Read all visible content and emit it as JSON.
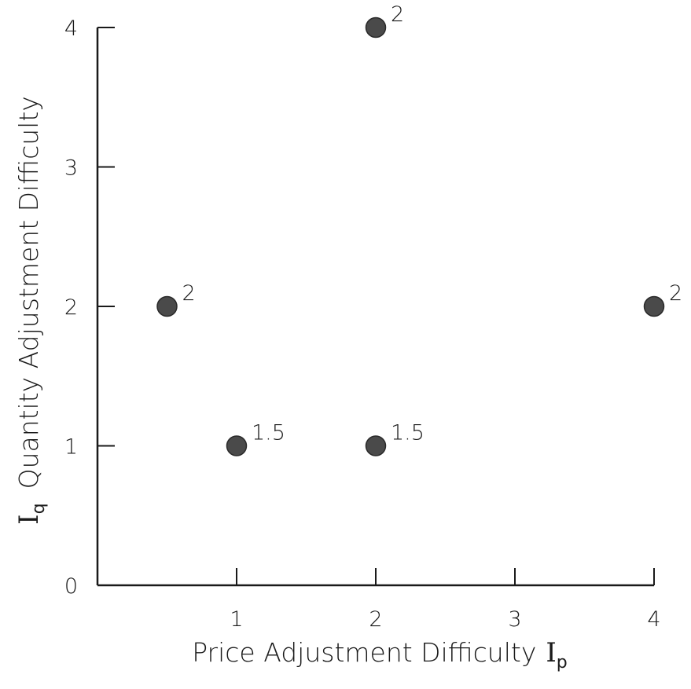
{
  "chart_data": {
    "type": "scatter",
    "xlabel": "Price Adjustment Difficulty",
    "x_symbol": "I",
    "x_symbol_sub": "p",
    "ylabel": "Quantity Adjustment Difficulty",
    "y_symbol": "I",
    "y_symbol_sub": "q",
    "xlim": [
      0,
      4
    ],
    "ylim": [
      0,
      4
    ],
    "x_ticks": [
      "1",
      "2",
      "3",
      "4"
    ],
    "y_ticks": [
      "0",
      "1",
      "2",
      "3",
      "4"
    ],
    "grid": false,
    "points": [
      {
        "x": 0.5,
        "y": 2,
        "label": "2"
      },
      {
        "x": 1,
        "y": 1,
        "label": "1.5"
      },
      {
        "x": 2,
        "y": 1,
        "label": "1.5"
      },
      {
        "x": 2,
        "y": 4,
        "label": "2"
      },
      {
        "x": 4,
        "y": 2,
        "label": "2"
      }
    ],
    "colors": {
      "ink": "#1a1a1a",
      "marker": "#4a4a4a"
    }
  }
}
